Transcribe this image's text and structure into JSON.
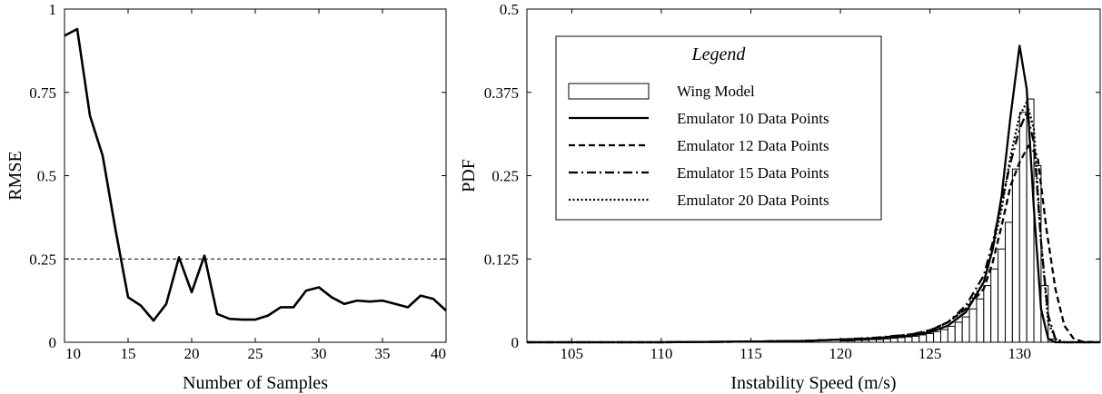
{
  "chart_data": [
    {
      "type": "line",
      "xlabel": "Number of Samples",
      "ylabel": "RMSE",
      "xlim": [
        10,
        40
      ],
      "ylim": [
        0,
        1
      ],
      "xticks": [
        "10",
        "15",
        "20",
        "25",
        "30",
        "35",
        "40"
      ],
      "yticks": [
        "0",
        "0.25",
        "0.5",
        "0.75",
        "1"
      ],
      "grid": false,
      "reference_line": {
        "y": 0.25,
        "style": "dashed"
      },
      "series": [
        {
          "x": [
            10,
            11,
            12,
            13,
            14,
            15,
            16,
            17,
            18,
            19,
            20,
            21,
            22,
            23,
            24,
            25,
            26,
            27,
            28,
            29,
            30,
            31,
            32,
            33,
            34,
            35,
            36,
            37,
            38,
            39,
            40
          ],
          "y": [
            0.92,
            0.94,
            0.68,
            0.56,
            0.34,
            0.135,
            0.11,
            0.065,
            0.115,
            0.255,
            0.15,
            0.26,
            0.085,
            0.07,
            0.068,
            0.068,
            0.08,
            0.105,
            0.105,
            0.155,
            0.165,
            0.135,
            0.115,
            0.125,
            0.122,
            0.125,
            0.115,
            0.105,
            0.14,
            0.13,
            0.095
          ]
        }
      ]
    },
    {
      "type": "line",
      "xlabel": "Instability Speed (m/s)",
      "ylabel": "PDF",
      "xlim": [
        102.5,
        134.5
      ],
      "ylim": [
        0,
        0.5
      ],
      "xticks": [
        "105",
        "110",
        "115",
        "120",
        "125",
        "130"
      ],
      "yticks": [
        "0",
        "0.125",
        "0.25",
        "0.375",
        "0.5"
      ],
      "grid": false,
      "legend": {
        "title": "Legend",
        "placement": "top-left",
        "entries": [
          "Wing Model",
          "Emulator 10 Data Points",
          "Emulator 12 Data Points",
          "Emulator 15 Data Points",
          "Emulator 20 Data Points"
        ]
      },
      "histogram": {
        "name": "Wing Model",
        "bin_width": 0.4,
        "bin_starts": [
          120,
          120.4,
          120.8,
          121.2,
          121.6,
          122,
          122.4,
          122.8,
          123.2,
          123.6,
          124,
          124.4,
          124.8,
          125.2,
          125.6,
          126,
          126.4,
          126.8,
          127.2,
          127.6,
          128,
          128.4,
          128.8,
          129.2,
          129.6,
          130,
          130.4,
          130.8,
          131.2,
          131.6
        ],
        "values": [
          0.002,
          0.002,
          0.003,
          0.003,
          0.004,
          0.004,
          0.005,
          0.006,
          0.007,
          0.008,
          0.009,
          0.011,
          0.013,
          0.016,
          0.019,
          0.024,
          0.03,
          0.038,
          0.05,
          0.065,
          0.085,
          0.11,
          0.14,
          0.18,
          0.26,
          0.345,
          0.365,
          0.265,
          0.085,
          0.005
        ]
      },
      "series": [
        {
          "name": "Emulator 10 Data Points",
          "style": "solid",
          "x": [
            102.5,
            110,
            115,
            118,
            120,
            122,
            124,
            125,
            126,
            127,
            128,
            128.5,
            129,
            129.5,
            130,
            130.4,
            130.8,
            131.2,
            131.6,
            132,
            132.5,
            134.5
          ],
          "y": [
            0,
            0,
            0.001,
            0.002,
            0.004,
            0.006,
            0.01,
            0.015,
            0.025,
            0.045,
            0.09,
            0.14,
            0.22,
            0.34,
            0.445,
            0.38,
            0.2,
            0.05,
            0.005,
            0,
            0,
            0
          ]
        },
        {
          "name": "Emulator 12 Data Points",
          "style": "dashed",
          "x": [
            102.5,
            110,
            115,
            118,
            120,
            122,
            124,
            125,
            126,
            127,
            128,
            128.5,
            129,
            129.5,
            130,
            130.5,
            131,
            131.5,
            132,
            132.5,
            133,
            133.5,
            134.5
          ],
          "y": [
            0,
            0,
            0.001,
            0.002,
            0.004,
            0.006,
            0.012,
            0.018,
            0.03,
            0.05,
            0.08,
            0.12,
            0.175,
            0.235,
            0.27,
            0.295,
            0.28,
            0.17,
            0.08,
            0.025,
            0.006,
            0.001,
            0
          ]
        },
        {
          "name": "Emulator 15 Data Points",
          "style": "dashdot",
          "x": [
            102.5,
            110,
            115,
            118,
            120,
            122,
            124,
            125,
            126,
            127,
            128,
            128.5,
            129,
            129.5,
            130,
            130.4,
            130.8,
            131.2,
            131.6,
            132,
            132.5,
            134.5
          ],
          "y": [
            0,
            0,
            0.001,
            0.002,
            0.004,
            0.007,
            0.012,
            0.018,
            0.03,
            0.055,
            0.1,
            0.15,
            0.21,
            0.27,
            0.32,
            0.345,
            0.3,
            0.15,
            0.04,
            0.005,
            0,
            0
          ]
        },
        {
          "name": "Emulator 20 Data Points",
          "style": "dotted",
          "x": [
            102.5,
            110,
            115,
            118,
            120,
            122,
            124,
            125,
            126,
            127,
            128,
            128.5,
            129,
            129.5,
            130,
            130.4,
            130.8,
            131.2,
            131.6,
            132,
            132.5,
            134.5
          ],
          "y": [
            0,
            0,
            0.001,
            0.002,
            0.004,
            0.006,
            0.011,
            0.017,
            0.03,
            0.05,
            0.09,
            0.14,
            0.2,
            0.28,
            0.34,
            0.36,
            0.32,
            0.15,
            0.03,
            0.005,
            0,
            0
          ]
        }
      ]
    }
  ]
}
